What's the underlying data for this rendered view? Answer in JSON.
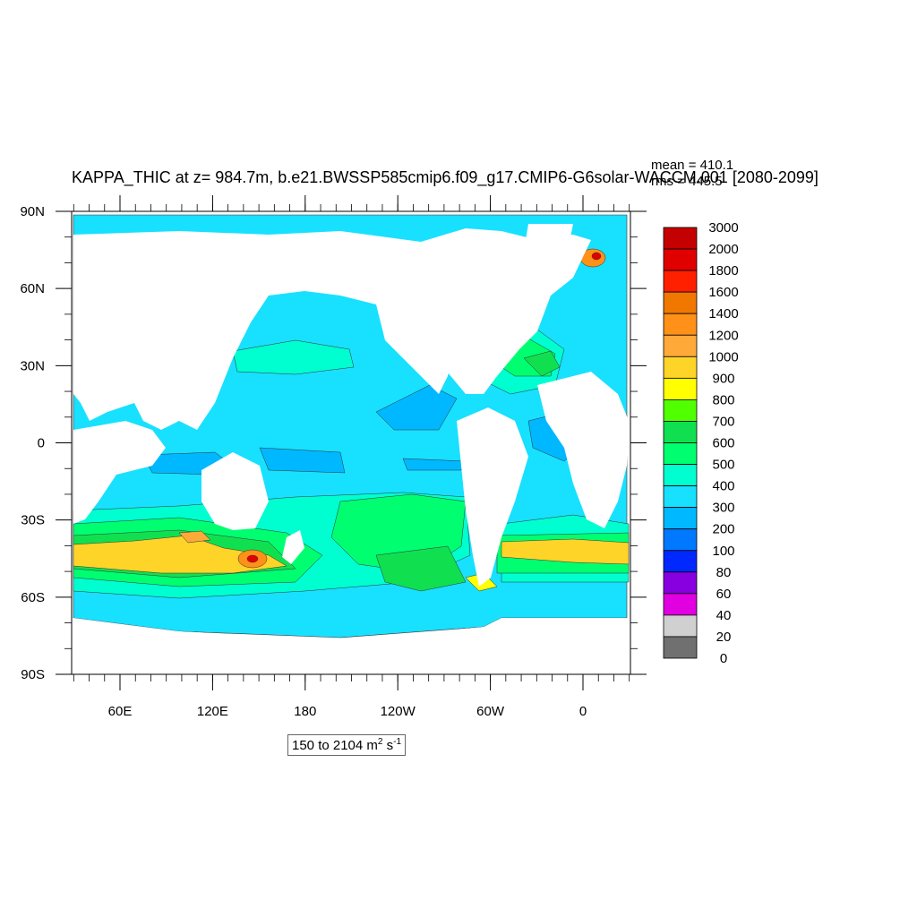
{
  "title": "KAPPA_THIC at z= 984.7m, b.e21.BWSSP585cmip6.f09_g17.CMIP6-G6solar-WACCM.001 [2080-2099]",
  "stats": {
    "mean": "mean = 410.1",
    "rms": "rms = 445.5"
  },
  "range_text": {
    "prefix": "150 to 2104 m",
    "exp1": "2",
    "middle": " s",
    "exp2": "-1"
  },
  "axes": {
    "lat_ticks": [
      "90N",
      "60N",
      "30N",
      "0",
      "30S",
      "60S",
      "90S"
    ],
    "lon_ticks": [
      "60E",
      "120E",
      "180",
      "120W",
      "60W",
      "0"
    ]
  },
  "colorbar": {
    "levels": [
      "3000",
      "2000",
      "1800",
      "1600",
      "1400",
      "1200",
      "1000",
      "900",
      "800",
      "700",
      "600",
      "500",
      "400",
      "300",
      "200",
      "100",
      "80",
      "60",
      "40",
      "20",
      "0"
    ],
    "colors": [
      "#c40000",
      "#e00000",
      "#ff2000",
      "#f07800",
      "#ff9018",
      "#ffaa38",
      "#ffd428",
      "#ffff00",
      "#50ff00",
      "#10e050",
      "#00ff70",
      "#00ffd0",
      "#18e0ff",
      "#00b8ff",
      "#0078ff",
      "#0028ff",
      "#8800e0",
      "#e000e0",
      "#d0d0d0",
      "#707070"
    ]
  },
  "map_colors": {
    "land": "#ffffff",
    "ocean_400": "#18e0ff",
    "ocean_300": "#00b8ff",
    "ocean_500": "#00ffd0",
    "ocean_600": "#00ff70",
    "ocean_700": "#10e050",
    "ocean_900": "#ffff00",
    "ocean_1000": "#ffd428",
    "ocean_1200": "#ffaa38",
    "ocean_1400": "#ff9018",
    "ocean_2000": "#e00000"
  }
}
